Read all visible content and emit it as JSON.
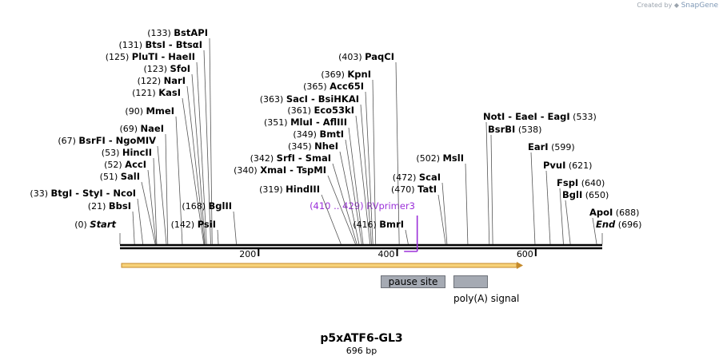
{
  "credit": {
    "prefix": "Created by",
    "brand": "SnapGene"
  },
  "map": {
    "title": "p5xATF6-GL3",
    "length_label": "696 bp",
    "length": 696,
    "ruler_ticks": [
      200,
      400,
      600
    ],
    "colors": {
      "backbone": "#000000",
      "orf_fill": "#f7d27a",
      "orf_stroke": "#c58a2b",
      "primer": "#9b30d9",
      "feature": "#a5aab3"
    }
  },
  "sites": [
    {
      "pos": 0,
      "label": "(0)",
      "names": [
        "Start"
      ],
      "italic": true
    },
    {
      "pos": 21,
      "label": "(21)",
      "names": [
        "BbsI"
      ]
    },
    {
      "pos": 33,
      "label": "(33)",
      "names": [
        "BtgI",
        "StyI",
        "NcoI"
      ]
    },
    {
      "pos": 51,
      "label": "(51)",
      "names": [
        "SalI"
      ]
    },
    {
      "pos": 52,
      "label": "(52)",
      "names": [
        "AccI"
      ]
    },
    {
      "pos": 53,
      "label": "(53)",
      "names": [
        "HincII"
      ]
    },
    {
      "pos": 67,
      "label": "(67)",
      "names": [
        "BsrFI",
        "NgoMIV"
      ]
    },
    {
      "pos": 69,
      "label": "(69)",
      "names": [
        "NaeI"
      ]
    },
    {
      "pos": 90,
      "label": "(90)",
      "names": [
        "MmeI"
      ]
    },
    {
      "pos": 121,
      "label": "(121)",
      "names": [
        "KasI"
      ]
    },
    {
      "pos": 122,
      "label": "(122)",
      "names": [
        "NarI"
      ]
    },
    {
      "pos": 123,
      "label": "(123)",
      "names": [
        "SfoI"
      ]
    },
    {
      "pos": 125,
      "label": "(125)",
      "names": [
        "PluTI",
        "HaeII"
      ]
    },
    {
      "pos": 131,
      "label": "(131)",
      "names": [
        "BtsI",
        "BtsαI"
      ]
    },
    {
      "pos": 133,
      "label": "(133)",
      "names": [
        "BstAPI"
      ]
    },
    {
      "pos": 142,
      "label": "(142)",
      "names": [
        "PsiI"
      ]
    },
    {
      "pos": 168,
      "label": "(168)",
      "names": [
        "BglII"
      ]
    },
    {
      "pos": 319,
      "label": "(319)",
      "names": [
        "HindIII"
      ]
    },
    {
      "pos": 340,
      "label": "(340)",
      "names": [
        "XmaI",
        "TspMI"
      ]
    },
    {
      "pos": 342,
      "label": "(342)",
      "names": [
        "SrfI",
        "SmaI"
      ]
    },
    {
      "pos": 345,
      "label": "(345)",
      "names": [
        "NheI"
      ]
    },
    {
      "pos": 349,
      "label": "(349)",
      "names": [
        "BmtI"
      ]
    },
    {
      "pos": 351,
      "label": "(351)",
      "names": [
        "MluI",
        "AflIII"
      ]
    },
    {
      "pos": 361,
      "label": "(361)",
      "names": [
        "Eco53kI"
      ]
    },
    {
      "pos": 363,
      "label": "(363)",
      "names": [
        "SacI",
        "BsiHKAI"
      ]
    },
    {
      "pos": 365,
      "label": "(365)",
      "names": [
        "Acc65I"
      ]
    },
    {
      "pos": 369,
      "label": "(369)",
      "names": [
        "KpnI"
      ]
    },
    {
      "pos": 403,
      "label": "(403)",
      "names": [
        "PaqCI"
      ]
    },
    {
      "pos": 416,
      "label": "(416)",
      "names": [
        "BmrI"
      ]
    },
    {
      "pos": 470,
      "label": "(470)",
      "names": [
        "TatI"
      ]
    },
    {
      "pos": 472,
      "label": "(472)",
      "names": [
        "ScaI"
      ]
    },
    {
      "pos": 502,
      "label": "(502)",
      "names": [
        "MslI"
      ]
    },
    {
      "pos": 533,
      "label": "(533)",
      "names": [
        "NotI",
        "EaeI",
        "EagI"
      ]
    },
    {
      "pos": 538,
      "label": "(538)",
      "names": [
        "BsrBI"
      ]
    },
    {
      "pos": 599,
      "label": "(599)",
      "names": [
        "EarI"
      ]
    },
    {
      "pos": 621,
      "label": "(621)",
      "names": [
        "PvuI"
      ]
    },
    {
      "pos": 640,
      "label": "(640)",
      "names": [
        "FspI"
      ]
    },
    {
      "pos": 650,
      "label": "(650)",
      "names": [
        "BglI"
      ]
    },
    {
      "pos": 688,
      "label": "(688)",
      "names": [
        "ApoI"
      ]
    },
    {
      "pos": 696,
      "label": "(696)",
      "names": [
        "End"
      ],
      "italic": true
    }
  ],
  "primer": {
    "label": "(410 .. 429)",
    "name": "RVprimer3",
    "start": 410,
    "end": 429
  },
  "features": [
    {
      "name": "pause site",
      "label_inside": true
    },
    {
      "name": "poly(A) signal",
      "label_inside": false
    }
  ]
}
